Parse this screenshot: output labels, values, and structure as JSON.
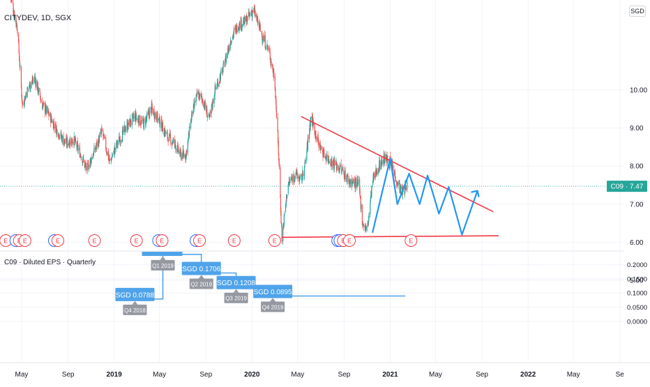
{
  "header": {
    "symbol_title": "CITYDEV, 1D, SGX",
    "currency": "SGD"
  },
  "colors": {
    "up": "#26a69a",
    "down": "#ef5350",
    "pattern": "#2196f3",
    "trend": "#f23645",
    "eps": "#4fa3ea",
    "event": "#f23645",
    "dividend": "#2962ff"
  },
  "chart_data": [
    {
      "type": "candlestick",
      "title": "CITYDEV, 1D, SGX",
      "price_axis": {
        "ticks": [
          "10.00",
          "9.00",
          "8.00",
          "7.00",
          "6.00",
          "5.00"
        ],
        "range": [
          4.85,
          12.3
        ]
      },
      "time_axis": {
        "ticks": [
          "May",
          "Sep",
          "2019",
          "May",
          "Sep",
          "2020",
          "May",
          "Sep",
          "2021",
          "May",
          "Sep",
          "2022",
          "May",
          "Se"
        ]
      },
      "last_price_label": "C09 · 7.47",
      "last_price": 7.47,
      "price_path": [
        [
          "2018-04-01",
          12.5
        ],
        [
          "2018-04-20",
          11.6
        ],
        [
          "2018-05-03",
          9.6
        ],
        [
          "2018-05-20",
          10.1
        ],
        [
          "2018-06-05",
          10.3
        ],
        [
          "2018-06-25",
          9.6
        ],
        [
          "2018-07-15",
          9.3
        ],
        [
          "2018-08-05",
          8.9
        ],
        [
          "2018-08-25",
          8.6
        ],
        [
          "2018-09-15",
          8.7
        ],
        [
          "2018-10-05",
          8.3
        ],
        [
          "2018-10-20",
          7.9
        ],
        [
          "2018-11-10",
          8.4
        ],
        [
          "2018-11-30",
          8.9
        ],
        [
          "2018-12-20",
          8.1
        ],
        [
          "2019-01-10",
          8.6
        ],
        [
          "2019-02-01",
          9.0
        ],
        [
          "2019-02-25",
          9.3
        ],
        [
          "2019-03-20",
          9.1
        ],
        [
          "2019-04-10",
          9.5
        ],
        [
          "2019-04-30",
          9.2
        ],
        [
          "2019-05-20",
          8.8
        ],
        [
          "2019-06-10",
          8.6
        ],
        [
          "2019-06-25",
          8.3
        ],
        [
          "2019-07-10",
          8.3
        ],
        [
          "2019-07-25",
          9.3
        ],
        [
          "2019-08-10",
          9.9
        ],
        [
          "2019-08-25",
          9.7
        ],
        [
          "2019-09-10",
          9.2
        ],
        [
          "2019-09-25",
          10.0
        ],
        [
          "2019-10-15",
          10.5
        ],
        [
          "2019-11-05",
          11.3
        ],
        [
          "2019-11-25",
          11.7
        ],
        [
          "2019-12-15",
          11.8
        ],
        [
          "2020-01-05",
          12.1
        ],
        [
          "2020-01-25",
          11.5
        ],
        [
          "2020-02-15",
          11.0
        ],
        [
          "2020-03-01",
          10.3
        ],
        [
          "2020-03-12",
          8.2
        ],
        [
          "2020-03-20",
          6.1
        ],
        [
          "2020-04-05",
          7.5
        ],
        [
          "2020-04-25",
          7.8
        ],
        [
          "2020-05-10",
          7.6
        ],
        [
          "2020-05-20",
          8.0
        ],
        [
          "2020-06-05",
          9.3
        ],
        [
          "2020-06-25",
          8.6
        ],
        [
          "2020-07-10",
          8.3
        ],
        [
          "2020-08-01",
          8.1
        ],
        [
          "2020-08-25",
          7.9
        ],
        [
          "2020-09-15",
          7.6
        ],
        [
          "2020-10-10",
          7.5
        ],
        [
          "2020-10-20",
          6.5
        ],
        [
          "2020-11-01",
          6.3
        ],
        [
          "2020-11-15",
          7.6
        ],
        [
          "2020-12-01",
          8.0
        ],
        [
          "2020-12-15",
          8.2
        ],
        [
          "2021-01-01",
          8.1
        ],
        [
          "2021-01-15",
          7.7
        ],
        [
          "2021-02-01",
          7.3
        ],
        [
          "2021-02-15",
          7.5
        ]
      ],
      "drawings": {
        "upper_trendline": [
          [
            "2020-05-10",
            9.3
          ],
          [
            "2021-10-01",
            6.8
          ]
        ],
        "lower_trendline": [
          [
            "2020-03-20",
            6.13
          ],
          [
            "2021-10-15",
            6.17
          ]
        ],
        "projection_path": [
          [
            "2020-11-15",
            6.25
          ],
          [
            "2021-01-01",
            8.2
          ],
          [
            "2021-01-20",
            7.0
          ],
          [
            "2021-02-20",
            7.8
          ],
          [
            "2021-03-20",
            7.0
          ],
          [
            "2021-04-10",
            7.75
          ],
          [
            "2021-05-10",
            6.75
          ],
          [
            "2021-06-05",
            7.45
          ],
          [
            "2021-07-10",
            6.2
          ],
          [
            "2021-08-20",
            7.35
          ]
        ]
      },
      "events": [
        {
          "date": "2018-03-20",
          "label": "E",
          "kind": "earnings"
        },
        {
          "date": "2018-04-25",
          "label": "E",
          "kind": "earnings",
          "dividend_overlap": true
        },
        {
          "date": "2018-05-10",
          "label": "E",
          "kind": "earnings"
        },
        {
          "date": "2018-08-05",
          "label": "E",
          "kind": "earnings",
          "dividend_overlap": true
        },
        {
          "date": "2018-11-10",
          "label": "E",
          "kind": "earnings"
        },
        {
          "date": "2019-03-01",
          "label": "E",
          "kind": "earnings"
        },
        {
          "date": "2019-05-08",
          "label": "E",
          "kind": "earnings",
          "dividend_overlap": true
        },
        {
          "date": "2019-08-15",
          "label": "E",
          "kind": "earnings",
          "dividend_overlap": true
        },
        {
          "date": "2019-11-15",
          "label": "E",
          "kind": "earnings"
        },
        {
          "date": "2020-03-01",
          "label": "E",
          "kind": "earnings"
        },
        {
          "date": "2020-08-15",
          "label": "D",
          "kind": "dividend"
        },
        {
          "date": "2020-08-30",
          "label": "E",
          "kind": "earnings",
          "dividend_overlap": true
        },
        {
          "date": "2020-09-15",
          "label": "E",
          "kind": "earnings"
        },
        {
          "date": "2021-02-25",
          "label": "E",
          "kind": "earnings"
        }
      ]
    },
    {
      "type": "bar",
      "title": "C09 · Diluted EPS · Quarterly",
      "y_axis": {
        "ticks": [
          "0.2000",
          "0.1500",
          "0.1000",
          "0.0500",
          "0.0000"
        ],
        "range": [
          -0.022,
          0.236
        ]
      },
      "points": [
        {
          "quarter": "Q4 2018",
          "date": "2019-02-25",
          "value": 0.0788,
          "label": "SGD 0.0788"
        },
        {
          "quarter": "Q1 2019",
          "date": "2019-05-10",
          "value": 0.236,
          "label": ""
        },
        {
          "quarter": "Q2 2019",
          "date": "2019-08-20",
          "value": 0.1706,
          "label": "SGD 0.1706"
        },
        {
          "quarter": "Q3 2019",
          "date": "2019-11-20",
          "value": 0.1208,
          "label": "SGD 0.1208"
        },
        {
          "quarter": "Q4 2019",
          "date": "2020-02-25",
          "value": 0.0895,
          "label": "SGD 0.0895"
        }
      ],
      "extension_end": "2021-02-10"
    }
  ]
}
